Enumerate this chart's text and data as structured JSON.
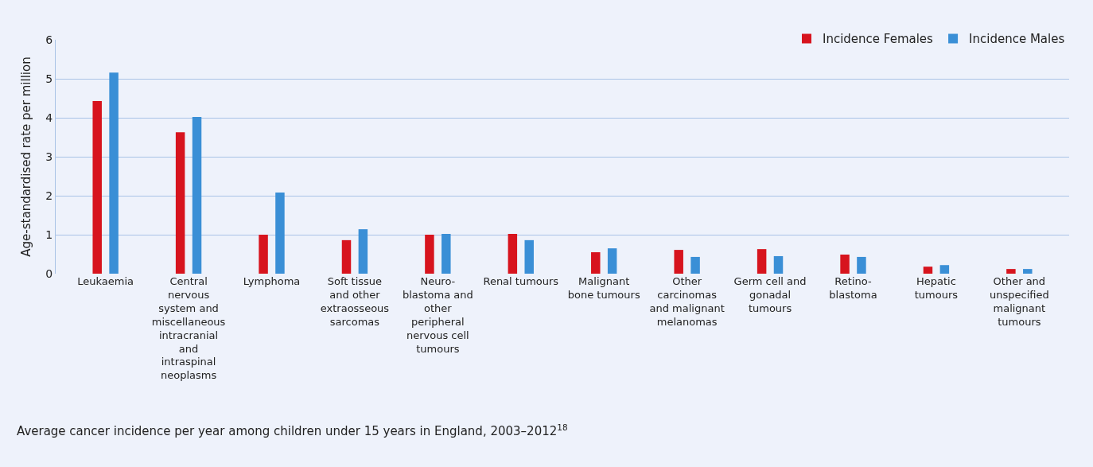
{
  "chart_data": {
    "type": "bar",
    "ylabel": "Age-standardised rate per million",
    "categories": [
      "Leukaemia",
      "Central nervous system and miscellaneous intracranial and intraspinal neoplasms",
      "Lymphoma",
      "Soft tissue and other extraosseous sarcomas",
      "Neuro-blastoma and other peripheral nervous cell tumours",
      "Renal tumours",
      "Malignant bone tumours",
      "Other carcinomas and malignant melanomas",
      "Germ cell and gonadal tumours",
      "Retino-blastoma",
      "Hepatic tumours",
      "Other and unspecified malignant tumours"
    ],
    "series": [
      {
        "name": "Incidence Females",
        "color": "#d7141e",
        "values": [
          4.43,
          3.63,
          1.0,
          0.86,
          1.0,
          1.02,
          0.55,
          0.61,
          0.63,
          0.49,
          0.18,
          0.12
        ]
      },
      {
        "name": "Incidence Males",
        "color": "#3a8fd6",
        "values": [
          5.16,
          4.02,
          2.08,
          1.14,
          1.02,
          0.86,
          0.65,
          0.43,
          0.45,
          0.43,
          0.22,
          0.12
        ]
      }
    ],
    "ylim": [
      0,
      6
    ],
    "yticks": [
      0,
      1,
      2,
      3,
      4,
      5,
      6
    ],
    "grid": "y",
    "legend": "top right",
    "annotations": [
      "Average cancer incidence per year among children under 15 years in England, 2003–2012$^{18}$"
    ]
  }
}
